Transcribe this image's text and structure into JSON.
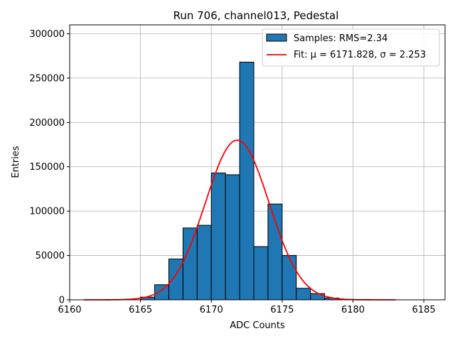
{
  "chart_data": {
    "type": "bar",
    "title": "Run 706, channel013, Pedestal",
    "xlabel": "ADC Counts",
    "ylabel": "Entries",
    "xlim": [
      6160,
      6186.5
    ],
    "ylim": [
      0,
      310000
    ],
    "xticks": [
      6160,
      6165,
      6170,
      6175,
      6180,
      6185
    ],
    "yticks": [
      0,
      50000,
      100000,
      150000,
      200000,
      250000,
      300000
    ],
    "grid": true,
    "legend_position": "top-right",
    "colors": {
      "bar_fill": "#1f77b4",
      "bar_edge": "#000000",
      "fit_line": "#ff0000",
      "grid": "#b0b0b0"
    },
    "histogram": {
      "name": "Samples: RMS=2.34",
      "bin_edges": [
        6165,
        6166,
        6167,
        6168,
        6169,
        6170,
        6171,
        6172,
        6173,
        6174,
        6175,
        6176,
        6177,
        6178,
        6179,
        6180
      ],
      "values": [
        3000,
        17000,
        46000,
        81000,
        84000,
        143000,
        141000,
        268000,
        60000,
        108000,
        50000,
        13000,
        7000,
        2000,
        500
      ]
    },
    "fit": {
      "name": "Fit: μ = 6171.828, σ = 2.253",
      "mu": 6171.828,
      "sigma": 2.253,
      "amplitude": 180000,
      "x_range": [
        6161,
        6183
      ]
    }
  }
}
